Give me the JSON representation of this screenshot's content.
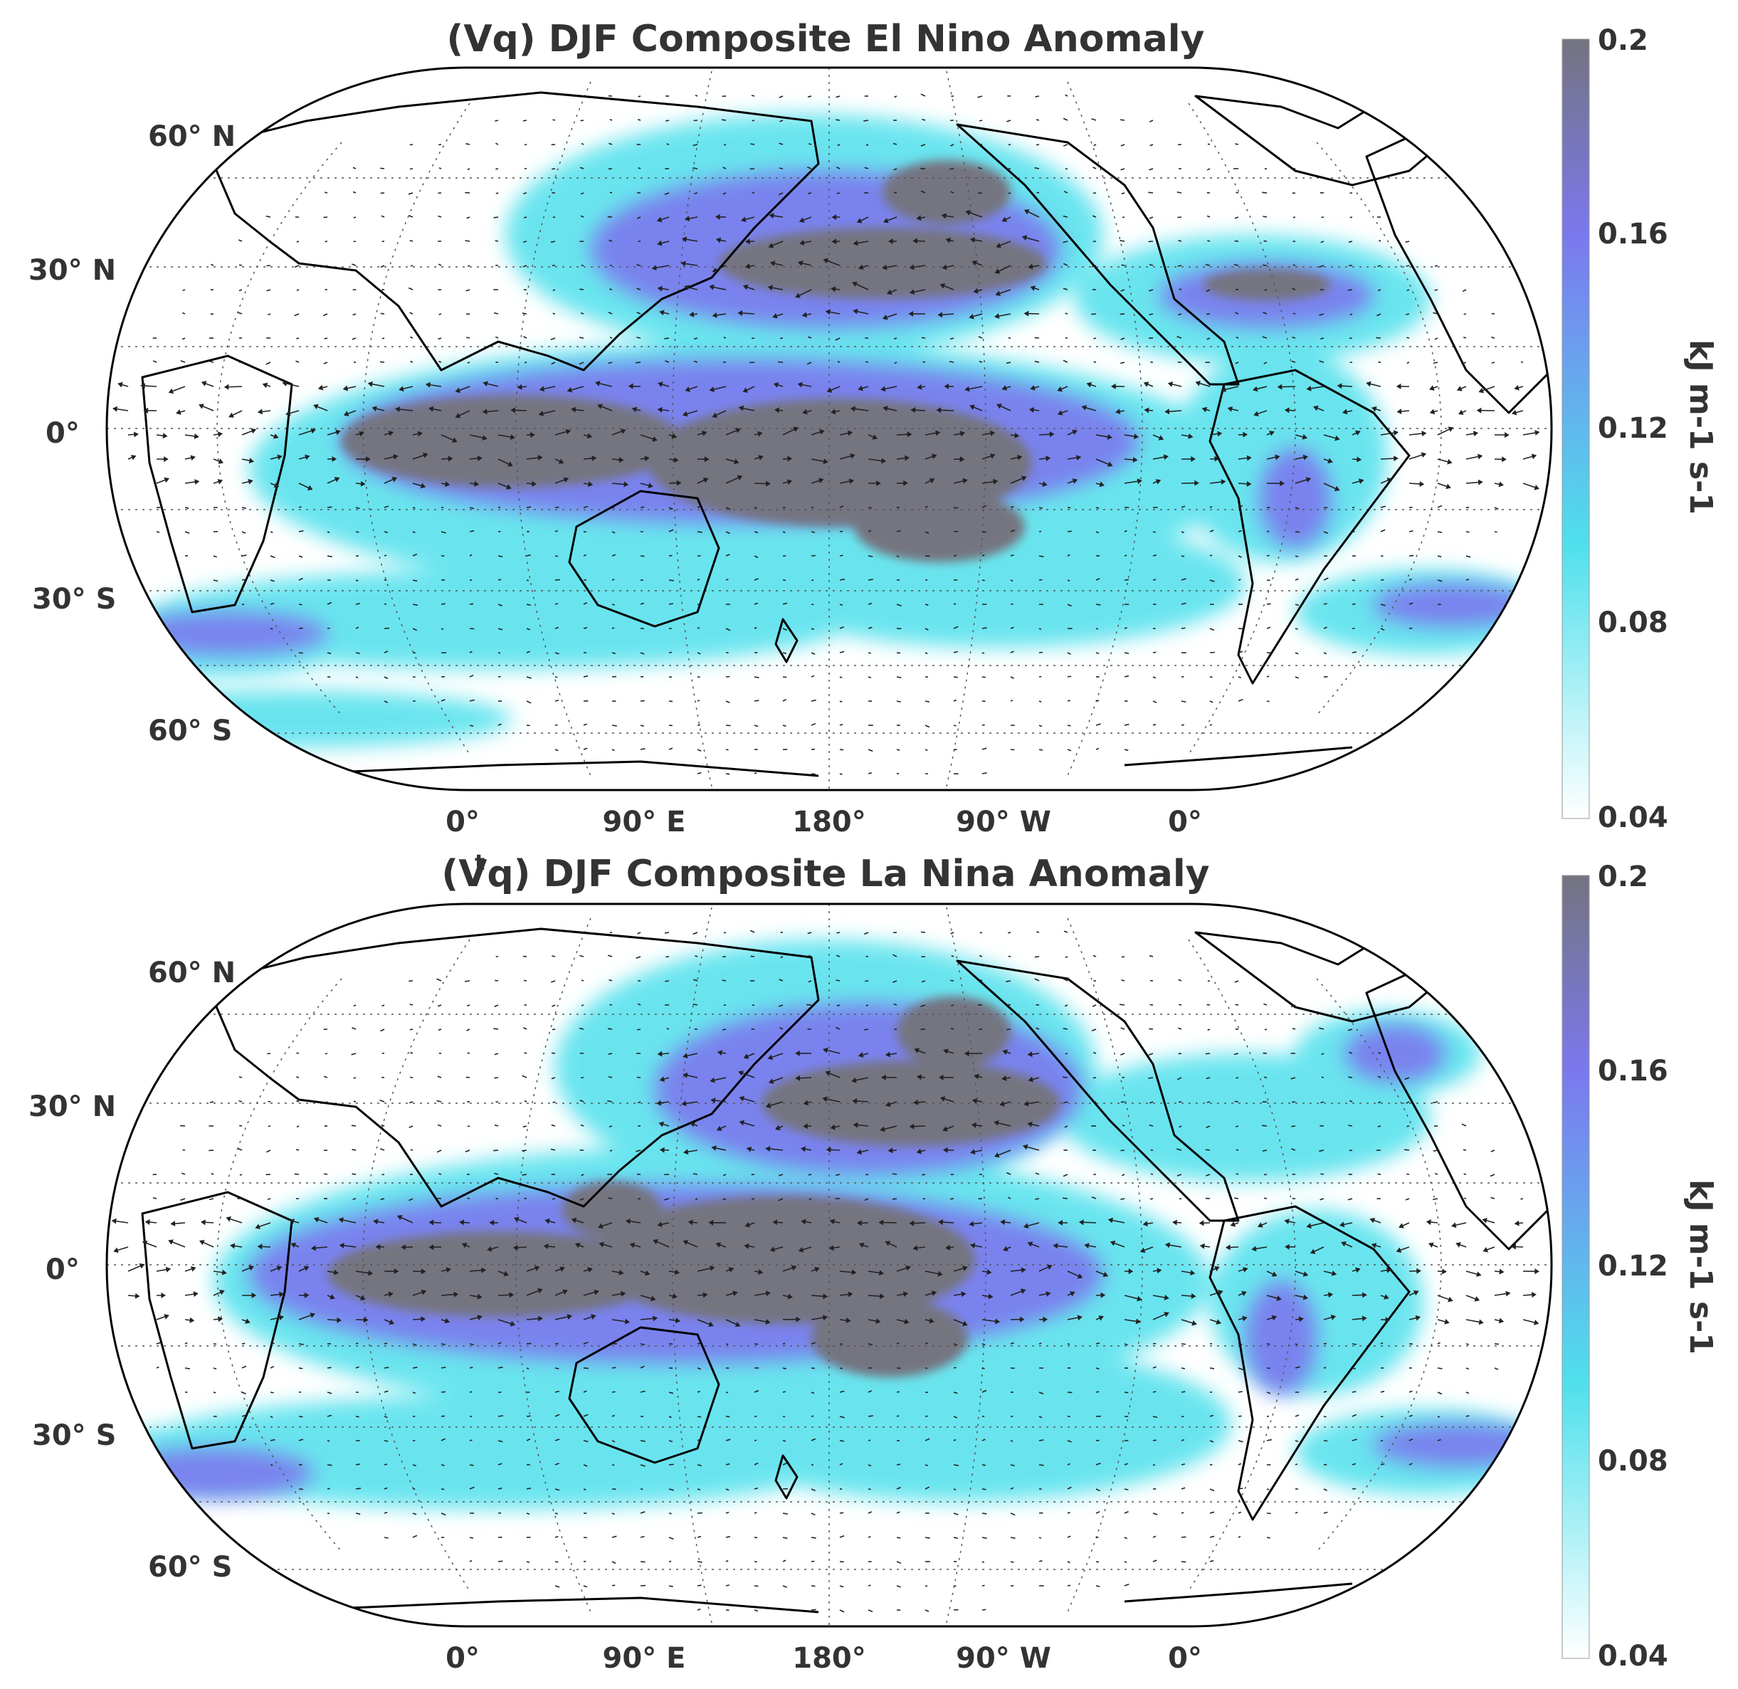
{
  "panels": [
    {
      "title": "(Vq) DJF Composite El Nino Anomaly",
      "title_sup": "",
      "lat_labels": [
        "60° N",
        "30° N",
        "0°",
        "30° S",
        "60° S"
      ],
      "lon_labels": [
        "0°",
        "90° E",
        "180°",
        "90° W",
        "0°"
      ],
      "colorbar": {
        "ticks": [
          "0.2",
          "0.16",
          "0.12",
          "0.08",
          "0.04"
        ],
        "unit_label": "kJ m-1 s-1",
        "range": [
          0.04,
          0.2
        ]
      }
    },
    {
      "title": "(Vq) DJF Composite La Nina Anomaly",
      "title_sup": "t",
      "lat_labels": [
        "60° N",
        "30° N",
        "0°",
        "30° S",
        "60° S"
      ],
      "lon_labels": [
        "0°",
        "90° E",
        "180°",
        "90° W",
        "0°"
      ],
      "colorbar": {
        "ticks": [
          "0.2",
          "0.16",
          "0.12",
          "0.08",
          "0.04"
        ],
        "unit_label": "kJ m-1 s-1",
        "range": [
          0.04,
          0.2
        ]
      }
    }
  ],
  "colors": {
    "low": "#ffffff",
    "cyan": "#4fe0ec",
    "blue": "#7b78ee",
    "high": "#747480",
    "coast": "#000000",
    "grid": "#444444"
  }
}
